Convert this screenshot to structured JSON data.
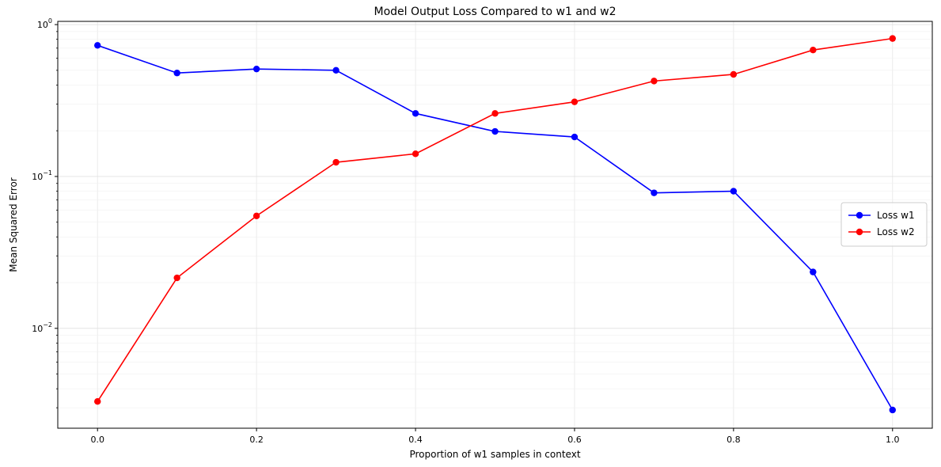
{
  "chart_data": {
    "type": "line",
    "title": "Model Output Loss Compared to w1 and w2",
    "xlabel": "Proportion of w1 samples in context",
    "ylabel": "Mean Squared Error",
    "yscale": "log",
    "xlim": [
      -0.05,
      1.05
    ],
    "ylim": [
      0.0022,
      1.05
    ],
    "x": [
      0.0,
      0.1,
      0.2,
      0.3,
      0.4,
      0.5,
      0.6,
      0.7,
      0.8,
      0.9,
      1.0
    ],
    "x_ticks": [
      0.0,
      0.2,
      0.4,
      0.6,
      0.8,
      1.0
    ],
    "x_tick_labels": [
      "0.0",
      "0.2",
      "0.4",
      "0.6",
      "0.8",
      "1.0"
    ],
    "y_ticks": [
      0.01,
      0.1,
      1
    ],
    "y_tick_labels": [
      {
        "base": "10",
        "exp": "−2"
      },
      {
        "base": "10",
        "exp": "−1"
      },
      {
        "base": "10",
        "exp": "0"
      }
    ],
    "grid": true,
    "legend_position": "center-right",
    "series": [
      {
        "name": "Loss w1",
        "color": "#0000ff",
        "marker": "circle",
        "values": [
          0.73,
          0.48,
          0.51,
          0.5,
          0.26,
          0.198,
          0.182,
          0.078,
          0.08,
          0.0235,
          0.0029
        ]
      },
      {
        "name": "Loss w2",
        "color": "#ff0000",
        "marker": "circle",
        "values": [
          0.0033,
          0.0215,
          0.055,
          0.124,
          0.141,
          0.26,
          0.31,
          0.425,
          0.47,
          0.68,
          0.81
        ]
      }
    ]
  }
}
